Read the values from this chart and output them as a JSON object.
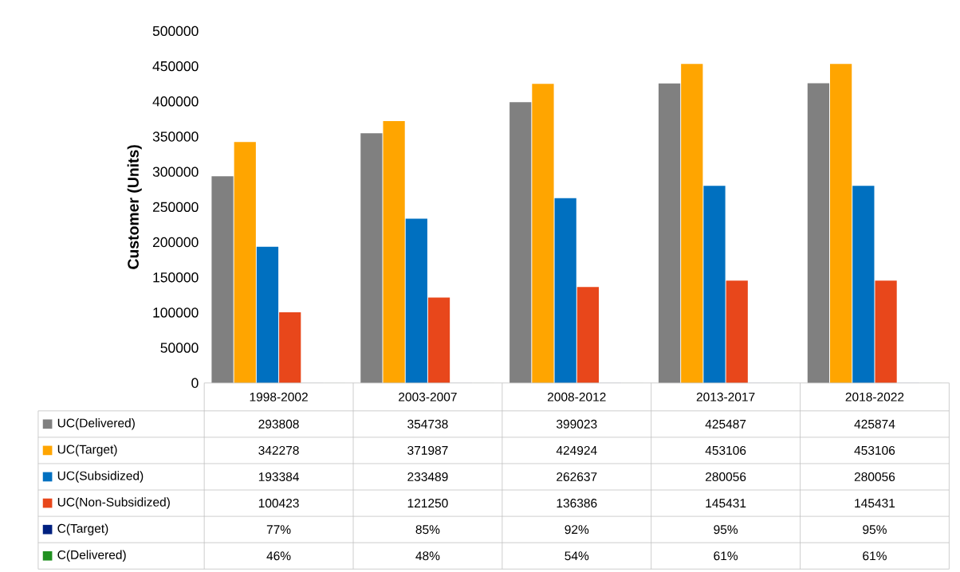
{
  "chart_data": {
    "type": "bar",
    "ylabel": "Customer (Units)",
    "categories": [
      "1998-2002",
      "2003-2007",
      "2008-2012",
      "2013-2017",
      "2018-2022"
    ],
    "ylim": [
      0,
      500000
    ],
    "yticks": [
      0,
      50000,
      100000,
      150000,
      200000,
      250000,
      300000,
      350000,
      400000,
      450000,
      500000
    ],
    "legend": "bottom",
    "series": [
      {
        "name": "UC(Delivered)",
        "color": "#808080",
        "values": [
          293808,
          354738,
          399023,
          425487,
          425874
        ],
        "value_labels": [
          "293808",
          "354738",
          "399023",
          "425487",
          "425874"
        ]
      },
      {
        "name": "UC(Target)",
        "color": "#ffa500",
        "values": [
          342278,
          371987,
          424924,
          453106,
          453106
        ],
        "value_labels": [
          "342278",
          "371987",
          "424924",
          "453106",
          "453106"
        ]
      },
      {
        "name": "UC(Subsidized)",
        "color": "#0070c0",
        "values": [
          193384,
          233489,
          262637,
          280056,
          280056
        ],
        "value_labels": [
          "193384",
          "233489",
          "262637",
          "280056",
          "280056"
        ]
      },
      {
        "name": "UC(Non-Subsidized)",
        "color": "#e8471b",
        "values": [
          100423,
          121250,
          136386,
          145431,
          145431
        ],
        "value_labels": [
          "100423",
          "121250",
          "136386",
          "145431",
          "145431"
        ]
      },
      {
        "name": "C(Target)",
        "color": "#002080",
        "values": [
          77,
          85,
          92,
          95,
          95
        ],
        "value_labels": [
          "77%",
          "85%",
          "92%",
          "95%",
          "95%"
        ]
      },
      {
        "name": "C(Delivered)",
        "color": "#209020",
        "values": [
          46,
          48,
          54,
          61,
          61
        ],
        "value_labels": [
          "46%",
          "48%",
          "54%",
          "61%",
          "61%"
        ]
      }
    ]
  }
}
